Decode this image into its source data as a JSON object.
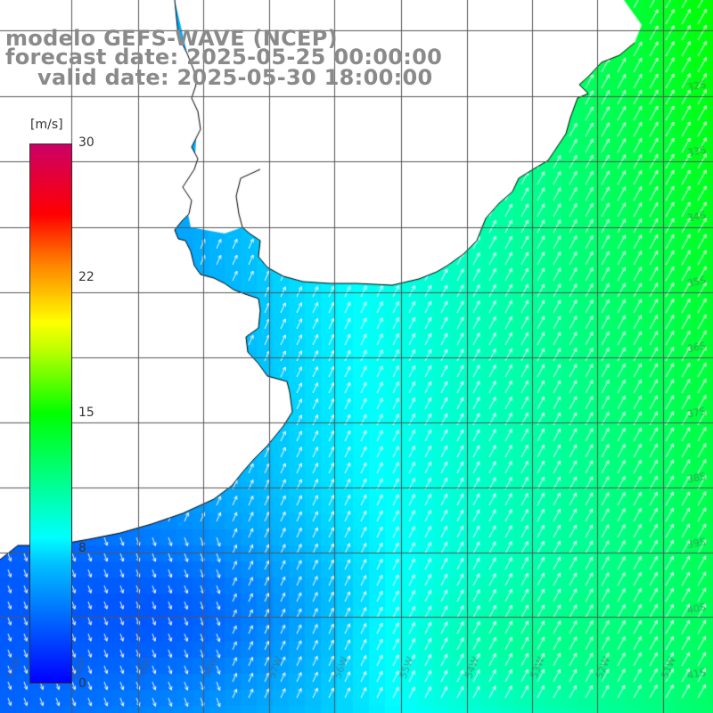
{
  "title": {
    "line1": "modelo GEFS-WAVE (NCEP)",
    "line2": "forecast date: 2025-05-25 00:00:00",
    "line3": "valid date: 2025-05-30 18:00:00"
  },
  "colorbar": {
    "unit": "[m/s]",
    "ticks": [
      "30",
      "22",
      "15",
      "8",
      "0"
    ],
    "range": [
      0,
      30
    ],
    "colors": [
      "#0000ff",
      "#00bfff",
      "#00ffff",
      "#00ff00",
      "#bfff00",
      "#ffff00",
      "#ff8000",
      "#ff0000",
      "#cc0066"
    ]
  },
  "map": {
    "land_color": "#ffffff",
    "coast_color": "#000000",
    "grid_color": "#555555",
    "vector_color": "#ffffff",
    "lon_labels": [
      "61W",
      "60W",
      "59W",
      "58W",
      "57W",
      "56W",
      "55W",
      "54W",
      "53W",
      "52W",
      "51W"
    ],
    "lat_labels": [
      "32S",
      "33S",
      "34S",
      "35S",
      "36S",
      "37S",
      "38S",
      "39S",
      "40S",
      "41S"
    ]
  }
}
